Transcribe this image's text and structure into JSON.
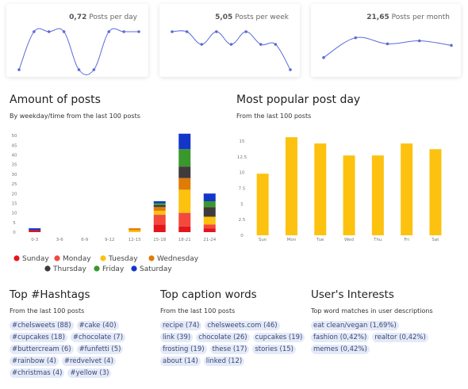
{
  "chart_data": [
    {
      "type": "line",
      "stat": "0,72",
      "stat_label": "Posts per day",
      "color": "#5b6bd5",
      "values": [
        0,
        1,
        1,
        1,
        0,
        0,
        1,
        1,
        1
      ],
      "ylim": [
        0,
        1
      ]
    },
    {
      "type": "line",
      "stat": "5,05",
      "stat_label": "Posts per week",
      "color": "#5b6bd5",
      "values": [
        3,
        3,
        2,
        3,
        2,
        3,
        2,
        2,
        0
      ],
      "ylim": [
        0,
        3
      ]
    },
    {
      "type": "line",
      "stat": "21,65",
      "stat_label": "Posts per month",
      "color": "#5b6bd5",
      "values": [
        8,
        21,
        17,
        19,
        16
      ],
      "ylim": [
        0,
        25
      ]
    },
    {
      "type": "stacked_bar",
      "title": "Amount of posts",
      "subtitle": "By weekday/time from the last 100 posts",
      "categories": [
        "0-3",
        "3-6",
        "6-9",
        "9-12",
        "12-15",
        "15-18",
        "18-21",
        "21-24"
      ],
      "series": [
        {
          "name": "Sunday",
          "color": "#e3161b",
          "values": [
            1,
            0,
            0,
            0,
            0,
            4,
            3,
            2
          ]
        },
        {
          "name": "Monday",
          "color": "#f4493c",
          "values": [
            0,
            0,
            0,
            0,
            0,
            5,
            7,
            2
          ]
        },
        {
          "name": "Tuesday",
          "color": "#fcc20f",
          "values": [
            0,
            0,
            0,
            0,
            1,
            2,
            12,
            4
          ]
        },
        {
          "name": "Wednesday",
          "color": "#e07b06",
          "values": [
            0,
            0,
            0,
            0,
            1,
            2,
            6,
            0
          ]
        },
        {
          "name": "Thursday",
          "color": "#3f3b3b",
          "values": [
            0,
            0,
            0,
            0,
            0,
            1,
            6,
            5
          ]
        },
        {
          "name": "Friday",
          "color": "#3a972d",
          "values": [
            0,
            0,
            0,
            0,
            0,
            1,
            9,
            3
          ]
        },
        {
          "name": "Saturday",
          "color": "#1336c9",
          "values": [
            1,
            0,
            0,
            0,
            0,
            1,
            8,
            4
          ]
        }
      ],
      "ylim": [
        0,
        55
      ],
      "yticks": [
        0,
        5,
        10,
        15,
        20,
        25,
        30,
        35,
        40,
        45,
        50
      ],
      "legend": "bottom"
    },
    {
      "type": "bar",
      "title": "Most popular post day",
      "subtitle": "From the last 100 posts",
      "categories": [
        "Sun",
        "Mon",
        "Tue",
        "Wed",
        "Thu",
        "Fri",
        "Sat"
      ],
      "color": "#fcc20f",
      "values": [
        9.8,
        15.6,
        14.6,
        12.7,
        12.7,
        14.6,
        13.7
      ],
      "ylim": [
        0,
        16
      ],
      "yticks": [
        0,
        2.5,
        5,
        7.5,
        10,
        12.5,
        15
      ]
    }
  ],
  "hashtags": {
    "title": "Top #Hashtags",
    "subtitle": "From the last 100 posts",
    "tags": [
      "#chelsweets (88)",
      "#cake (40)",
      "#cupcakes (18)",
      "#chocolate (7)",
      "#buttercream (6)",
      "#funfetti (5)",
      "#rainbow (4)",
      "#redvelvet (4)",
      "#christmas (4)",
      "#yellow (3)"
    ]
  },
  "caption_words": {
    "title": "Top caption words",
    "subtitle": "From the last 100 posts",
    "tags": [
      "recipe (74)",
      "chelsweets.com (46)",
      "link (39)",
      "chocolate (26)",
      "cupcakes (19)",
      "frosting (19)",
      "these (17)",
      "stories (15)",
      "about (14)",
      "linked (12)"
    ]
  },
  "interests": {
    "title": "User's Interests",
    "subtitle": "Top word matches in user descriptions",
    "tags": [
      "eat clean/vegan (1,69%)",
      "fashion (0,42%)",
      "realtor (0,42%)",
      "memes (0,42%)"
    ]
  }
}
